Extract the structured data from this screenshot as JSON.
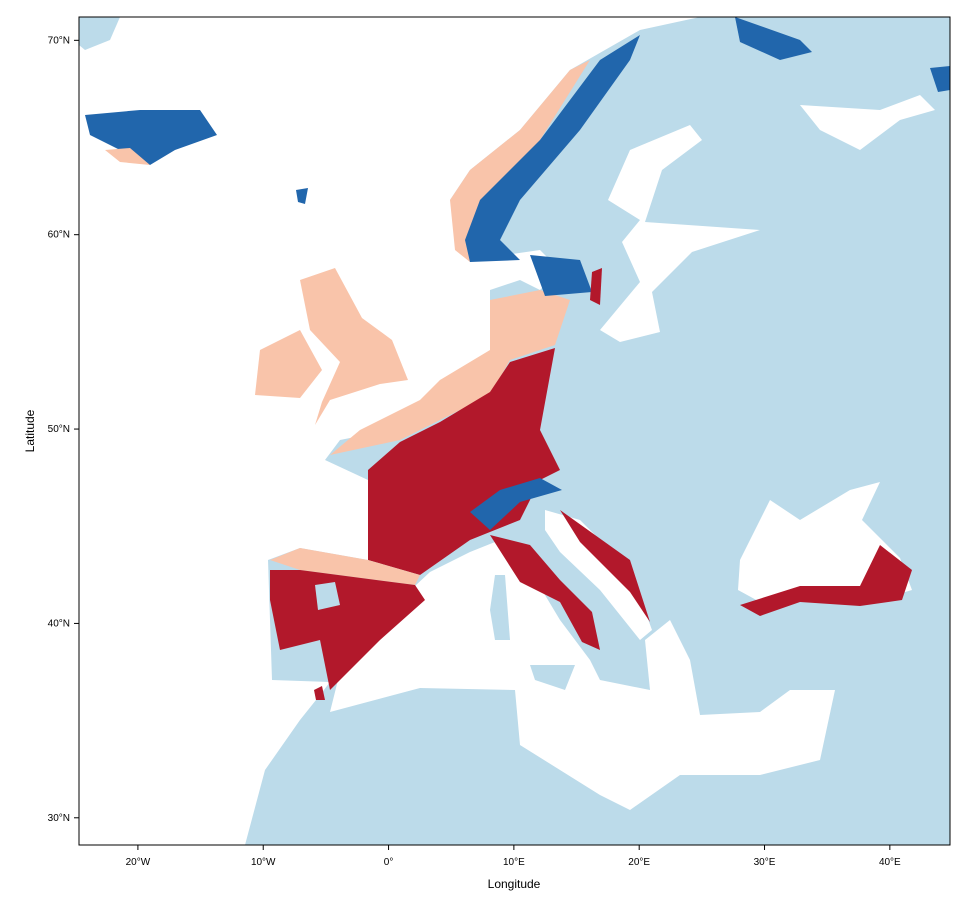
{
  "map": {
    "x_label": "Longitude",
    "y_label": "Latitude",
    "xlim": [
      -24.7,
      44.8
    ],
    "ylim": [
      28.6,
      71.2
    ],
    "xticks": [
      {
        "value": -20,
        "label": "20°W"
      },
      {
        "value": -10,
        "label": "10°W"
      },
      {
        "value": 0,
        "label": "0°"
      },
      {
        "value": 10,
        "label": "10°E"
      },
      {
        "value": 20,
        "label": "20°E"
      },
      {
        "value": 30,
        "label": "30°E"
      },
      {
        "value": 40,
        "label": "40°E"
      }
    ],
    "yticks": [
      {
        "value": 30,
        "label": "30°N"
      },
      {
        "value": 40,
        "label": "40°N"
      },
      {
        "value": 50,
        "label": "50°N"
      },
      {
        "value": 60,
        "label": "60°N"
      },
      {
        "value": 70,
        "label": "70°N"
      }
    ]
  }
}
